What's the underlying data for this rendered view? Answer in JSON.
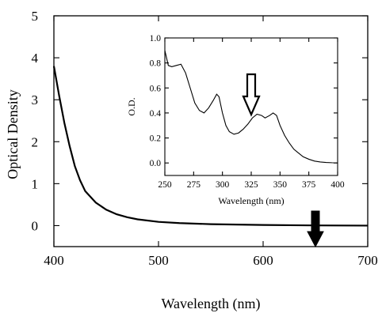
{
  "chart_data": [
    {
      "type": "line",
      "xlabel": "Wavelength (nm)",
      "ylabel": "Optical Density",
      "xlim": [
        400,
        700
      ],
      "ylim": [
        -0.5,
        5
      ],
      "x_ticks": [
        400,
        500,
        600,
        700
      ],
      "y_ticks": [
        0,
        1,
        2,
        3,
        4,
        5
      ],
      "series": [
        {
          "x": [
            400,
            405,
            410,
            415,
            420,
            425,
            430,
            440,
            450,
            460,
            470,
            480,
            500,
            520,
            550,
            600,
            650,
            700
          ],
          "y": [
            3.8,
            3.1,
            2.45,
            1.9,
            1.42,
            1.08,
            0.82,
            0.55,
            0.38,
            0.27,
            0.2,
            0.15,
            0.09,
            0.06,
            0.035,
            0.015,
            0.005,
            0.0
          ]
        }
      ],
      "annotations": [
        {
          "type": "arrow",
          "style": "filled",
          "direction": "down",
          "x": 650
        }
      ]
    },
    {
      "type": "line",
      "xlabel": "Wavelength (nm)",
      "ylabel": "O.D.",
      "xlim": [
        250,
        400
      ],
      "ylim": [
        -0.1,
        1.0
      ],
      "x_ticks": [
        250,
        275,
        300,
        325,
        350,
        375,
        400
      ],
      "y_ticks": [
        0.0,
        0.2,
        0.4,
        0.6,
        0.8,
        1.0
      ],
      "series": [
        {
          "x": [
            250,
            253,
            256,
            260,
            264,
            268,
            272,
            276,
            280,
            284,
            288,
            292,
            295,
            297,
            300,
            303,
            306,
            310,
            314,
            318,
            322,
            326,
            330,
            334,
            337,
            341,
            344,
            347,
            350,
            354,
            358,
            362,
            366,
            370,
            375,
            380,
            385,
            390,
            395,
            400
          ],
          "y": [
            0.9,
            0.78,
            0.77,
            0.78,
            0.79,
            0.72,
            0.6,
            0.48,
            0.42,
            0.4,
            0.44,
            0.5,
            0.55,
            0.53,
            0.4,
            0.3,
            0.25,
            0.23,
            0.24,
            0.27,
            0.31,
            0.36,
            0.39,
            0.38,
            0.36,
            0.38,
            0.4,
            0.38,
            0.3,
            0.22,
            0.16,
            0.11,
            0.08,
            0.05,
            0.03,
            0.015,
            0.008,
            0.004,
            0.002,
            0.001
          ]
        }
      ],
      "annotations": [
        {
          "type": "arrow",
          "style": "hollow",
          "direction": "down",
          "x": 325
        }
      ]
    }
  ]
}
